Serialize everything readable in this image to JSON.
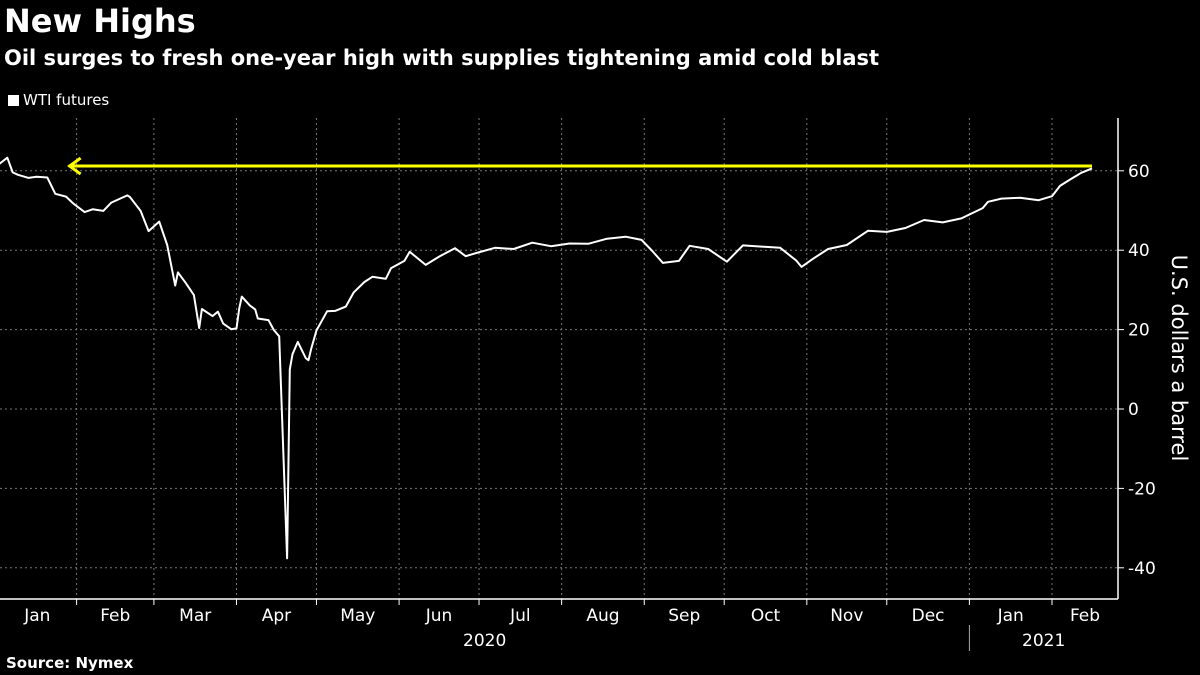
{
  "header": {
    "title": "New Highs",
    "subtitle": "Oil surges to fresh one-year high with supplies tightening amid cold blast"
  },
  "footer": {
    "source": "Source: Nymex"
  },
  "chart_data": {
    "type": "line",
    "title": "New Highs",
    "subtitle": "Oil surges to fresh one-year high with supplies tightening amid cold blast",
    "ylabel": "U.S. dollars a barrel",
    "xlabel": "",
    "ylim": [
      -48,
      73
    ],
    "yticks": [
      60,
      40,
      20,
      0,
      -20,
      -40
    ],
    "xlim": [
      "2020-01-02",
      "2021-02-22"
    ],
    "xtick_months": [
      {
        "label": "Jan",
        "start": "2020-01-01"
      },
      {
        "label": "Feb",
        "start": "2020-02-01"
      },
      {
        "label": "Mar",
        "start": "2020-03-01"
      },
      {
        "label": "Apr",
        "start": "2020-04-01"
      },
      {
        "label": "May",
        "start": "2020-05-01"
      },
      {
        "label": "Jun",
        "start": "2020-06-01"
      },
      {
        "label": "Jul",
        "start": "2020-07-01"
      },
      {
        "label": "Aug",
        "start": "2020-08-01"
      },
      {
        "label": "Sep",
        "start": "2020-09-01"
      },
      {
        "label": "Oct",
        "start": "2020-10-01"
      },
      {
        "label": "Nov",
        "start": "2020-11-01"
      },
      {
        "label": "Dec",
        "start": "2020-12-01"
      },
      {
        "label": "Jan",
        "start": "2021-01-01"
      },
      {
        "label": "Feb",
        "start": "2021-02-01"
      }
    ],
    "years": [
      {
        "label": "2020"
      },
      {
        "label": "2021"
      }
    ],
    "grid": true,
    "legend_position": "top-left",
    "series": [
      {
        "name": "WTI futures",
        "color": "#ffffff",
        "points": [
          [
            "2020-01-02",
            61.2
          ],
          [
            "2020-01-06",
            63.3
          ],
          [
            "2020-01-08",
            59.6
          ],
          [
            "2020-01-10",
            59.0
          ],
          [
            "2020-01-14",
            58.2
          ],
          [
            "2020-01-17",
            58.5
          ],
          [
            "2020-01-21",
            58.3
          ],
          [
            "2020-01-24",
            54.2
          ],
          [
            "2020-01-28",
            53.5
          ],
          [
            "2020-01-31",
            51.6
          ],
          [
            "2020-02-04",
            49.6
          ],
          [
            "2020-02-07",
            50.3
          ],
          [
            "2020-02-11",
            49.9
          ],
          [
            "2020-02-14",
            52.0
          ],
          [
            "2020-02-20",
            53.8
          ],
          [
            "2020-02-21",
            53.4
          ],
          [
            "2020-02-25",
            49.9
          ],
          [
            "2020-02-28",
            44.8
          ],
          [
            "2020-03-03",
            47.2
          ],
          [
            "2020-03-06",
            41.3
          ],
          [
            "2020-03-09",
            31.1
          ],
          [
            "2020-03-10",
            34.4
          ],
          [
            "2020-03-13",
            31.7
          ],
          [
            "2020-03-16",
            28.7
          ],
          [
            "2020-03-18",
            20.4
          ],
          [
            "2020-03-19",
            25.2
          ],
          [
            "2020-03-23",
            23.4
          ],
          [
            "2020-03-25",
            24.5
          ],
          [
            "2020-03-27",
            21.5
          ],
          [
            "2020-03-30",
            20.1
          ],
          [
            "2020-04-01",
            20.3
          ],
          [
            "2020-04-02",
            25.3
          ],
          [
            "2020-04-03",
            28.3
          ],
          [
            "2020-04-06",
            26.1
          ],
          [
            "2020-04-08",
            25.1
          ],
          [
            "2020-04-09",
            22.8
          ],
          [
            "2020-04-13",
            22.4
          ],
          [
            "2020-04-15",
            19.9
          ],
          [
            "2020-04-17",
            18.3
          ],
          [
            "2020-04-20",
            -37.6
          ],
          [
            "2020-04-21",
            10.0
          ],
          [
            "2020-04-22",
            13.8
          ],
          [
            "2020-04-24",
            16.9
          ],
          [
            "2020-04-27",
            12.8
          ],
          [
            "2020-04-28",
            12.3
          ],
          [
            "2020-04-29",
            15.1
          ],
          [
            "2020-05-01",
            19.8
          ],
          [
            "2020-05-05",
            24.6
          ],
          [
            "2020-05-08",
            24.7
          ],
          [
            "2020-05-12",
            25.8
          ],
          [
            "2020-05-15",
            29.4
          ],
          [
            "2020-05-19",
            32.0
          ],
          [
            "2020-05-22",
            33.3
          ],
          [
            "2020-05-27",
            32.8
          ],
          [
            "2020-05-29",
            35.5
          ],
          [
            "2020-06-03",
            37.3
          ],
          [
            "2020-06-05",
            39.6
          ],
          [
            "2020-06-11",
            36.3
          ],
          [
            "2020-06-16",
            38.4
          ],
          [
            "2020-06-22",
            40.5
          ],
          [
            "2020-06-26",
            38.5
          ],
          [
            "2020-06-30",
            39.3
          ],
          [
            "2020-07-07",
            40.6
          ],
          [
            "2020-07-14",
            40.3
          ],
          [
            "2020-07-21",
            41.9
          ],
          [
            "2020-07-28",
            41.0
          ],
          [
            "2020-08-04",
            41.7
          ],
          [
            "2020-08-11",
            41.6
          ],
          [
            "2020-08-18",
            42.9
          ],
          [
            "2020-08-25",
            43.4
          ],
          [
            "2020-08-31",
            42.6
          ],
          [
            "2020-09-04",
            39.8
          ],
          [
            "2020-09-08",
            36.8
          ],
          [
            "2020-09-14",
            37.3
          ],
          [
            "2020-09-18",
            41.1
          ],
          [
            "2020-09-25",
            40.3
          ],
          [
            "2020-10-02",
            37.1
          ],
          [
            "2020-10-08",
            41.2
          ],
          [
            "2020-10-15",
            40.9
          ],
          [
            "2020-10-22",
            40.6
          ],
          [
            "2020-10-28",
            37.4
          ],
          [
            "2020-10-30",
            35.8
          ],
          [
            "2020-11-03",
            37.7
          ],
          [
            "2020-11-09",
            40.3
          ],
          [
            "2020-11-16",
            41.3
          ],
          [
            "2020-11-24",
            44.9
          ],
          [
            "2020-12-01",
            44.6
          ],
          [
            "2020-12-08",
            45.6
          ],
          [
            "2020-12-15",
            47.6
          ],
          [
            "2020-12-22",
            47.0
          ],
          [
            "2020-12-29",
            48.0
          ],
          [
            "2021-01-06",
            50.6
          ],
          [
            "2021-01-08",
            52.2
          ],
          [
            "2021-01-13",
            53.0
          ],
          [
            "2021-01-20",
            53.2
          ],
          [
            "2021-01-27",
            52.6
          ],
          [
            "2021-02-01",
            53.6
          ],
          [
            "2021-02-04",
            56.2
          ],
          [
            "2021-02-08",
            57.9
          ],
          [
            "2021-02-10",
            58.7
          ],
          [
            "2021-02-12",
            59.5
          ],
          [
            "2021-02-16",
            60.6
          ]
        ]
      }
    ],
    "annotations": [
      {
        "type": "arrow",
        "color": "#ffff00",
        "y": 61.2,
        "from": "2021-02-16",
        "to": "2020-01-29",
        "direction": "left"
      }
    ]
  }
}
